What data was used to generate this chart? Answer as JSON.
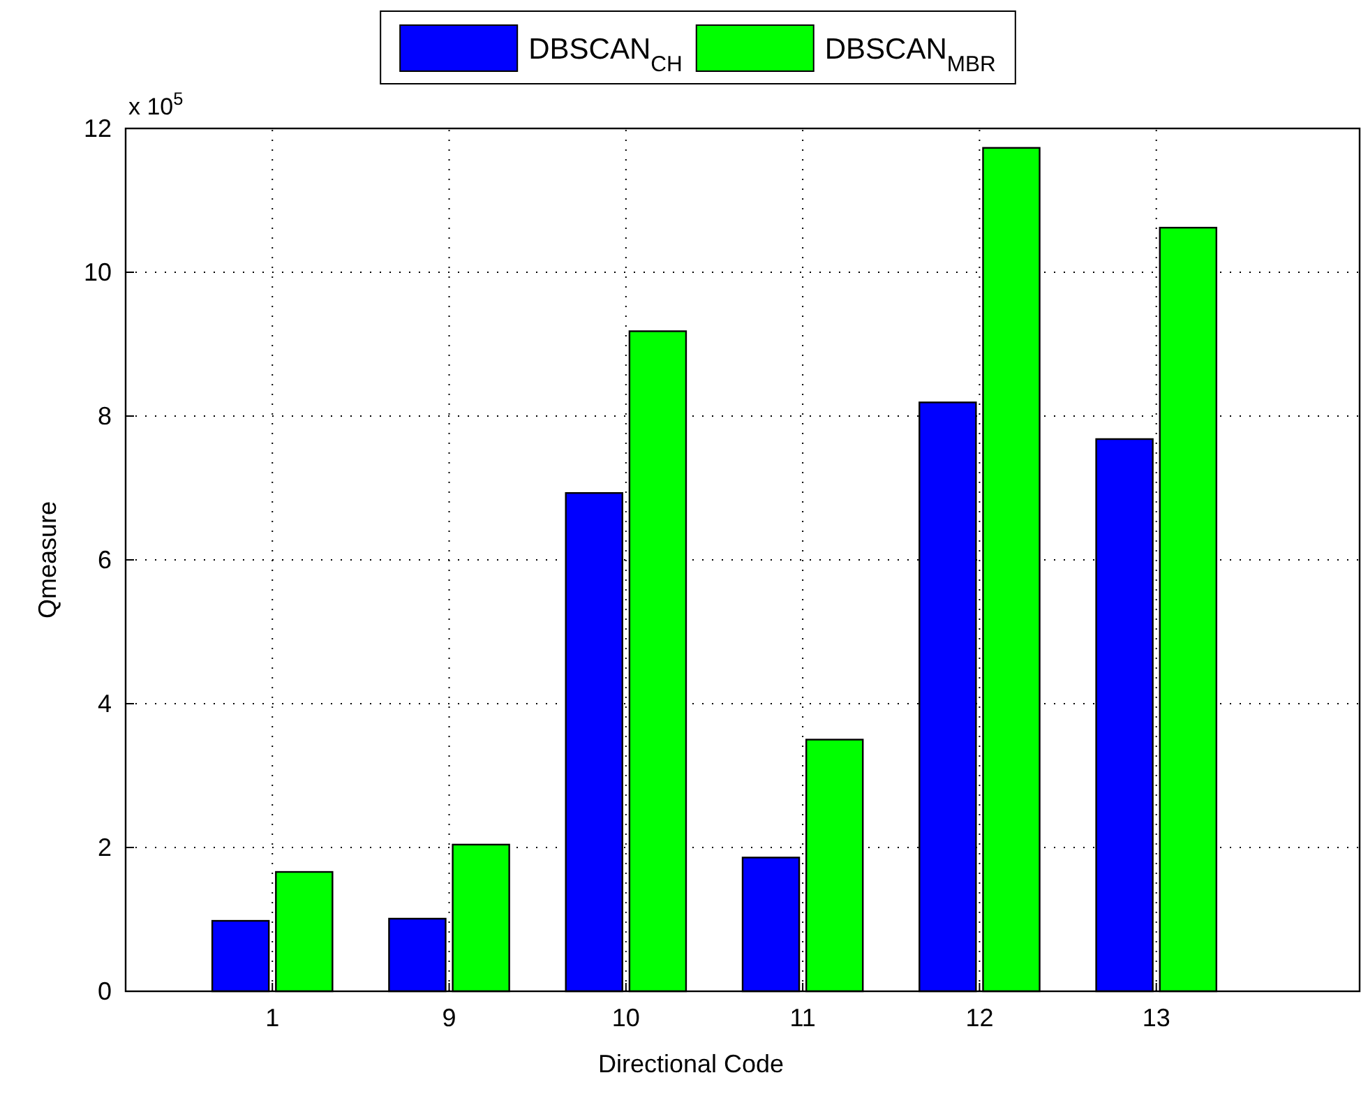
{
  "chart_data": {
    "type": "bar",
    "xlabel": "Directional Code",
    "ylabel": "Qmeasure",
    "categories": [
      "1",
      "9",
      "10",
      "11",
      "12",
      "13"
    ],
    "series": [
      {
        "name": "DBSCAN$_{CH}$",
        "color": "#0000ff",
        "values": [
          0.98,
          1.01,
          6.93,
          1.86,
          8.19,
          7.68
        ]
      },
      {
        "name": "DBSCAN$_{MBR}$",
        "color": "#00ff00",
        "values": [
          1.66,
          2.04,
          9.18,
          3.5,
          11.73,
          10.62
        ]
      }
    ],
    "ylim": [
      0,
      12
    ],
    "yticks": [
      0,
      2,
      4,
      6,
      8,
      10,
      12
    ],
    "grid": true,
    "legend": "top",
    "annotations": [
      "x 10$^{5}$"
    ]
  }
}
